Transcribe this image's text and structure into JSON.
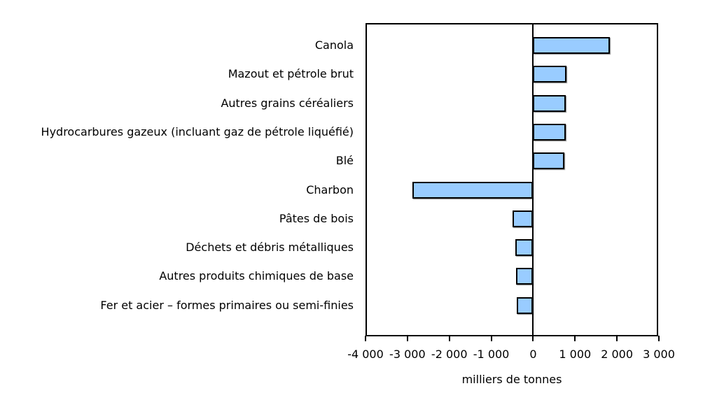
{
  "chart_data": {
    "type": "bar",
    "orientation": "horizontal",
    "title": "",
    "xlabel": "milliers de tonnes",
    "ylabel": "",
    "xlim": [
      -4000,
      3000
    ],
    "xticks": [
      -4000,
      -3000,
      -2000,
      -1000,
      0,
      1000,
      2000,
      3000
    ],
    "xtick_labels": [
      "-4 000",
      "-3 000",
      "-2 000",
      "-1 000",
      "0",
      "1 000",
      "2 000",
      "3 000"
    ],
    "grid": false,
    "legend": null,
    "bar_color": "#99ccff",
    "categories": [
      "Canola",
      "Mazout et pétrole brut",
      "Autres grains céréaliers",
      "Hydrocarbures gazeux (incluant gaz de pétrole liquéfié)",
      "Blé",
      "Charbon",
      "Pâtes de bois",
      "Déchets et débris métalliques",
      "Autres produits chimiques de base",
      "Fer et acier – formes primaires ou semi-finies"
    ],
    "values": [
      1830,
      790,
      770,
      770,
      750,
      -2880,
      -500,
      -420,
      -400,
      -390
    ]
  }
}
